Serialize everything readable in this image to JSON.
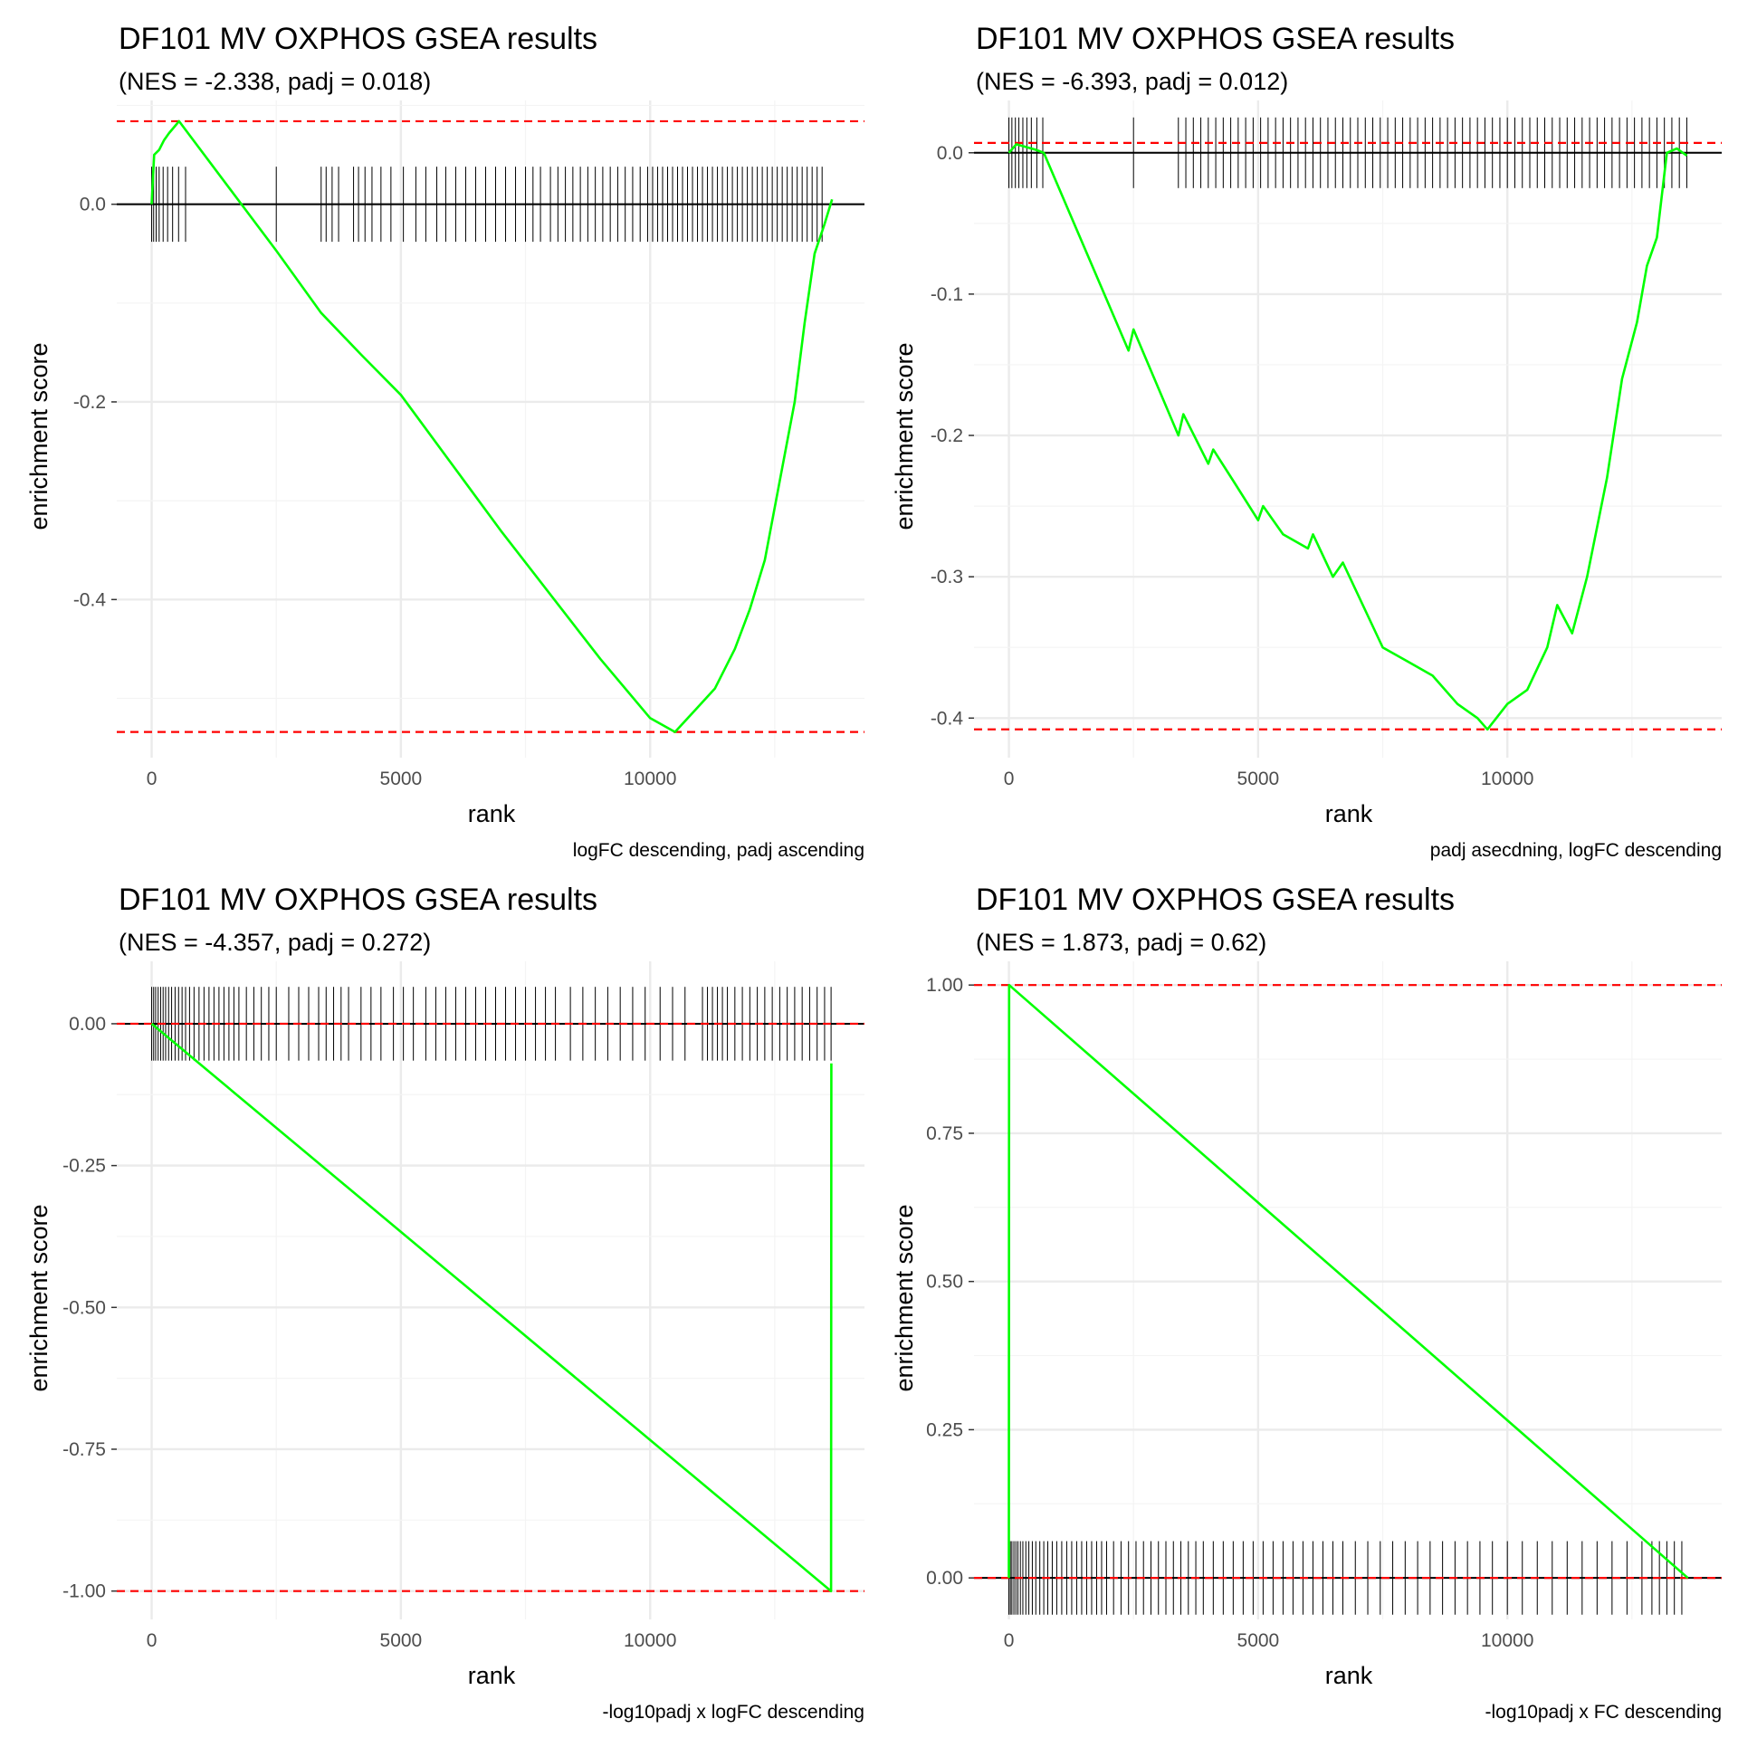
{
  "colors": {
    "curve": "#00ff00",
    "bounds": "#ff0000",
    "ticks": "#000000",
    "zero": "#000000",
    "grid": "#ebebeb"
  },
  "chart_data": [
    {
      "type": "line",
      "title": "DF101 MV OXPHOS GSEA results",
      "subtitle": "(NES = -2.338, padj = 0.018)",
      "xlabel": "rank",
      "ylabel": "enrichment score",
      "caption": "logFC descending, padj ascending",
      "xlim": [
        -700,
        14300
      ],
      "ylim": [
        -0.56,
        0.105
      ],
      "x_ticks": [
        0,
        5000,
        10000
      ],
      "x_tick_labels": [
        "0",
        "5000",
        "10000"
      ],
      "y_ticks": [
        0.0,
        -0.2,
        -0.4
      ],
      "y_tick_labels": [
        "0.0",
        "-0.2",
        "-0.4"
      ],
      "es_max": 0.084,
      "es_min": -0.534,
      "tick_half_height": 0.038,
      "curve": [
        [
          0,
          0.0
        ],
        [
          50,
          0.05
        ],
        [
          150,
          0.055
        ],
        [
          250,
          0.065
        ],
        [
          350,
          0.072
        ],
        [
          450,
          0.078
        ],
        [
          550,
          0.084
        ],
        [
          1800,
          0.0
        ],
        [
          2500,
          -0.047
        ],
        [
          3400,
          -0.11
        ],
        [
          4200,
          -0.152
        ],
        [
          5000,
          -0.193
        ],
        [
          7000,
          -0.33
        ],
        [
          9000,
          -0.46
        ],
        [
          10000,
          -0.52
        ],
        [
          10500,
          -0.534
        ],
        [
          10900,
          -0.512
        ],
        [
          11300,
          -0.49
        ],
        [
          11700,
          -0.45
        ],
        [
          12000,
          -0.41
        ],
        [
          12300,
          -0.36
        ],
        [
          12600,
          -0.28
        ],
        [
          12900,
          -0.2
        ],
        [
          13100,
          -0.12
        ],
        [
          13300,
          -0.05
        ],
        [
          13500,
          -0.02
        ],
        [
          13650,
          0.005
        ]
      ],
      "hits": [
        0,
        40,
        90,
        150,
        230,
        320,
        420,
        540,
        680,
        2500,
        3400,
        3500,
        3620,
        3750,
        4050,
        4150,
        4280,
        4420,
        4600,
        4800,
        5050,
        5300,
        5500,
        5720,
        5900,
        6100,
        6300,
        6500,
        6700,
        6900,
        7100,
        7300,
        7500,
        7650,
        7800,
        8000,
        8150,
        8300,
        8450,
        8600,
        8750,
        8900,
        9050,
        9200,
        9350,
        9500,
        9650,
        9800,
        9950,
        10050,
        10150,
        10250,
        10350,
        10450,
        10550,
        10650,
        10750,
        10850,
        10950,
        11050,
        11150,
        11250,
        11350,
        11450,
        11550,
        11650,
        11750,
        11850,
        11950,
        12050,
        12150,
        12250,
        12350,
        12450,
        12550,
        12650,
        12750,
        12850,
        12950,
        13050,
        13150,
        13250,
        13350,
        13450
      ]
    },
    {
      "type": "line",
      "title": "DF101 MV OXPHOS GSEA results",
      "subtitle": "(NES = -6.393, padj = 0.012)",
      "xlabel": "rank",
      "ylabel": "enrichment score",
      "caption": "padj asecdning, logFC descending",
      "xlim": [
        -700,
        14300
      ],
      "ylim": [
        -0.428,
        0.037
      ],
      "x_ticks": [
        0,
        5000,
        10000
      ],
      "x_tick_labels": [
        "0",
        "5000",
        "10000"
      ],
      "y_ticks": [
        0.0,
        -0.1,
        -0.2,
        -0.3,
        -0.4
      ],
      "y_tick_labels": [
        "0.0",
        "-0.1",
        "-0.2",
        "-0.3",
        "-0.4"
      ],
      "es_max": 0.007,
      "es_min": -0.408,
      "tick_half_height": 0.025,
      "curve": [
        [
          0,
          0.0
        ],
        [
          150,
          0.006
        ],
        [
          350,
          0.004
        ],
        [
          550,
          0.002
        ],
        [
          700,
          0.0
        ],
        [
          2400,
          -0.14
        ],
        [
          2500,
          -0.125
        ],
        [
          3400,
          -0.2
        ],
        [
          3500,
          -0.185
        ],
        [
          4000,
          -0.22
        ],
        [
          4100,
          -0.21
        ],
        [
          4500,
          -0.232
        ],
        [
          5000,
          -0.26
        ],
        [
          5100,
          -0.25
        ],
        [
          5500,
          -0.27
        ],
        [
          6000,
          -0.28
        ],
        [
          6100,
          -0.27
        ],
        [
          6500,
          -0.3
        ],
        [
          6700,
          -0.29
        ],
        [
          7500,
          -0.35
        ],
        [
          8000,
          -0.36
        ],
        [
          8500,
          -0.37
        ],
        [
          9000,
          -0.39
        ],
        [
          9400,
          -0.4
        ],
        [
          9600,
          -0.408
        ],
        [
          10000,
          -0.39
        ],
        [
          10400,
          -0.38
        ],
        [
          10800,
          -0.35
        ],
        [
          11000,
          -0.32
        ],
        [
          11300,
          -0.34
        ],
        [
          11600,
          -0.3
        ],
        [
          12000,
          -0.23
        ],
        [
          12300,
          -0.16
        ],
        [
          12600,
          -0.12
        ],
        [
          12800,
          -0.08
        ],
        [
          13000,
          -0.06
        ],
        [
          13200,
          0.0
        ],
        [
          13400,
          0.003
        ],
        [
          13600,
          -0.002
        ]
      ],
      "hits": [
        0,
        60,
        130,
        200,
        280,
        360,
        450,
        560,
        680,
        2500,
        3400,
        3550,
        3700,
        3850,
        4000,
        4150,
        4300,
        4450,
        4600,
        4750,
        4900,
        5050,
        5200,
        5350,
        5500,
        5650,
        5800,
        5950,
        6100,
        6250,
        6400,
        6550,
        6700,
        6850,
        7000,
        7150,
        7300,
        7450,
        7600,
        7750,
        7900,
        8050,
        8200,
        8350,
        8500,
        8650,
        8800,
        8950,
        9100,
        9250,
        9400,
        9550,
        9700,
        9850,
        10000,
        10150,
        10300,
        10450,
        10600,
        10750,
        10900,
        11050,
        11200,
        11350,
        11500,
        11650,
        11800,
        11950,
        12100,
        12250,
        12400,
        12550,
        12700,
        12850,
        13000,
        13150,
        13300,
        13450,
        13600
      ]
    },
    {
      "type": "line",
      "title": "DF101 MV OXPHOS GSEA results",
      "subtitle": "(NES = -4.357, padj = 0.272)",
      "xlabel": "rank",
      "ylabel": "enrichment score",
      "caption": "-log10padj x logFC descending",
      "xlim": [
        -700,
        14300
      ],
      "ylim": [
        -1.05,
        0.11
      ],
      "x_ticks": [
        0,
        5000,
        10000
      ],
      "x_tick_labels": [
        "0",
        "5000",
        "10000"
      ],
      "y_ticks": [
        0.0,
        -0.25,
        -0.5,
        -0.75,
        -1.0
      ],
      "y_tick_labels": [
        "0.00",
        "-0.25",
        "-0.50",
        "-0.75",
        "-1.00"
      ],
      "es_max": 0.0,
      "es_min": -1.0,
      "tick_half_height": 0.065,
      "curve": [
        [
          0,
          0.0
        ],
        [
          13630,
          -1.0
        ],
        [
          13635,
          -0.07
        ]
      ],
      "hits": [
        0,
        40,
        80,
        130,
        180,
        230,
        280,
        340,
        400,
        470,
        540,
        610,
        680,
        760,
        850,
        950,
        1050,
        1150,
        1250,
        1350,
        1450,
        1550,
        1650,
        1750,
        1900,
        2050,
        2200,
        2350,
        2500,
        2750,
        2950,
        3150,
        3350,
        3500,
        3650,
        3800,
        3950,
        4200,
        4400,
        4600,
        4850,
        5050,
        5250,
        5500,
        5700,
        5900,
        6100,
        6300,
        6500,
        6700,
        6900,
        7100,
        7300,
        7500,
        7700,
        7900,
        8100,
        8400,
        8650,
        8900,
        9150,
        9400,
        9650,
        9900,
        10200,
        10450,
        10700,
        11050,
        11150,
        11250,
        11350,
        11450,
        11550,
        11700,
        11850,
        12000,
        12150,
        12300,
        12450,
        12600,
        12750,
        12900,
        13050,
        13200,
        13350,
        13500,
        13630
      ]
    },
    {
      "type": "line",
      "title": "DF101 MV OXPHOS GSEA results",
      "subtitle": "(NES = 1.873, padj = 0.62)",
      "xlabel": "rank",
      "ylabel": "enrichment score",
      "caption": "-log10padj x FC descending",
      "xlim": [
        -700,
        14300
      ],
      "ylim": [
        -0.07,
        1.04
      ],
      "x_ticks": [
        0,
        5000,
        10000
      ],
      "x_tick_labels": [
        "0",
        "5000",
        "10000"
      ],
      "y_ticks": [
        0.0,
        0.25,
        0.5,
        0.75,
        1.0
      ],
      "y_tick_labels": [
        "0.00",
        "0.25",
        "0.50",
        "0.75",
        "1.00"
      ],
      "es_max": 1.0,
      "es_min": 0.0,
      "tick_half_height": 0.062,
      "curve": [
        [
          0,
          0.0
        ],
        [
          5,
          1.0
        ],
        [
          13620,
          0.0
        ]
      ],
      "hits": [
        0,
        30,
        60,
        100,
        140,
        180,
        230,
        280,
        340,
        400,
        470,
        540,
        620,
        700,
        780,
        870,
        960,
        1060,
        1160,
        1260,
        1360,
        1460,
        1560,
        1660,
        1760,
        1860,
        1960,
        2100,
        2250,
        2400,
        2550,
        2700,
        2850,
        3000,
        3150,
        3300,
        3450,
        3600,
        3750,
        3900,
        4100,
        4300,
        4500,
        4700,
        4900,
        5100,
        5300,
        5500,
        5700,
        5900,
        6100,
        6300,
        6500,
        6700,
        6950,
        7200,
        7450,
        7700,
        7950,
        8200,
        8450,
        8700,
        8950,
        9200,
        9450,
        9700,
        10000,
        10300,
        10600,
        10900,
        11200,
        11500,
        11800,
        12100,
        12400,
        12700,
        12900,
        13050,
        13200,
        13350,
        13500
      ]
    }
  ]
}
